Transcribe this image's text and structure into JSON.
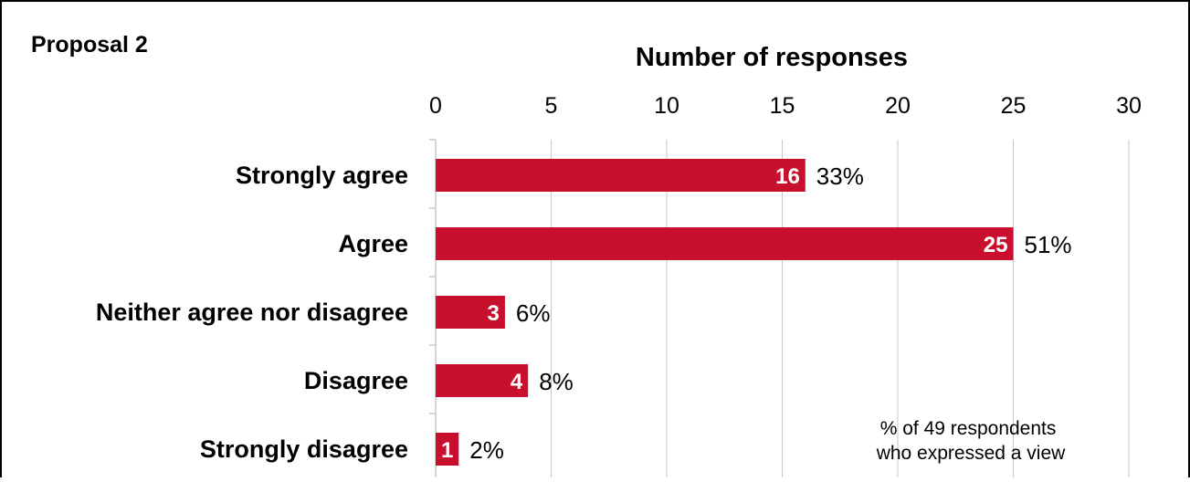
{
  "panel_title": "Proposal 2",
  "note": [
    "% of 49 respondents",
    "who expressed a view"
  ],
  "colors": {
    "bar": "#c8102e",
    "grid": "#c8c8c8",
    "border": "#000000"
  },
  "chart_data": {
    "type": "bar",
    "orientation": "horizontal",
    "title": "Proposal 2",
    "xlabel": "Number of responses",
    "ylabel": "",
    "xlim": [
      0,
      30
    ],
    "x_ticks": [
      0,
      5,
      10,
      15,
      20,
      25,
      30
    ],
    "x_axis_position": "top",
    "grid": true,
    "categories": [
      "Strongly agree",
      "Agree",
      "Neither agree nor disagree",
      "Disagree",
      "Strongly disagree"
    ],
    "values": [
      16,
      25,
      3,
      4,
      1
    ],
    "percent_labels": [
      "33%",
      "51%",
      "6%",
      "8%",
      "2%"
    ],
    "annotation": "% of 49 respondents who expressed a view"
  }
}
